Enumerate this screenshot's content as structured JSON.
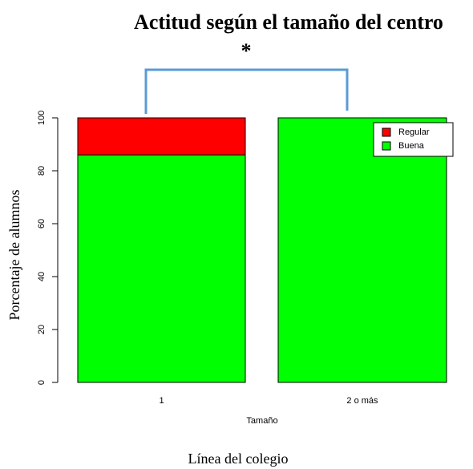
{
  "chart_data": {
    "type": "stacked_bar",
    "title": "Actitud según el tamaño del centro",
    "annotation": "*",
    "x_label": "Tamaño",
    "y_label": "Porcentaje de alumnos",
    "caption": "Línea del colegio",
    "categories": [
      "1",
      "2 o más"
    ],
    "series": [
      {
        "name": "Regular",
        "color": "#ff0000",
        "values": [
          14,
          0
        ]
      },
      {
        "name": "Buena",
        "color": "#00ff00",
        "values": [
          86,
          100
        ]
      }
    ],
    "ylim": [
      0,
      100
    ],
    "yticks": [
      0,
      20,
      40,
      60,
      80,
      100
    ],
    "legend": "top-right"
  }
}
